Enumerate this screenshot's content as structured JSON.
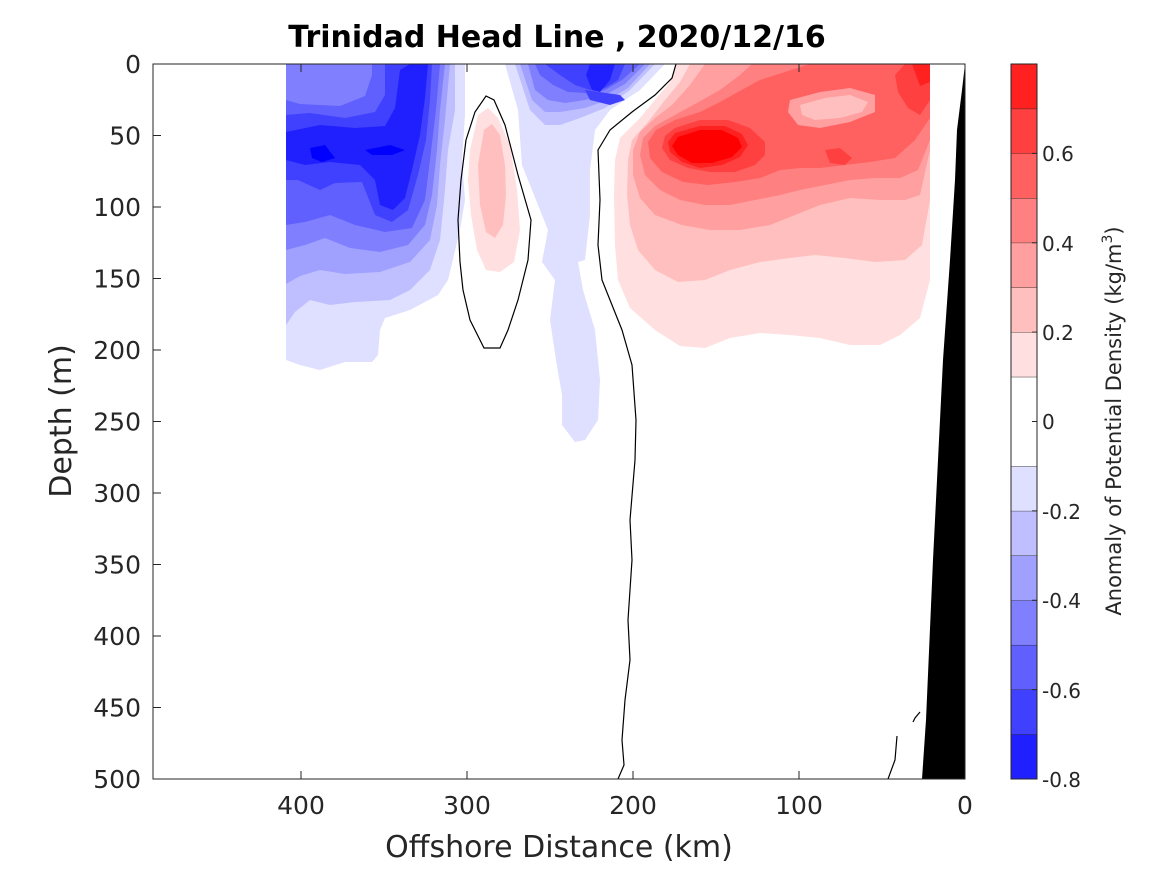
{
  "chart_data": {
    "type": "heatmap",
    "title": "Trinidad Head Line , 2020/12/16",
    "xlabel": "Offshore Distance (km)",
    "ylabel": "Depth (m)",
    "xlim": [
      490,
      0
    ],
    "ylim": [
      0,
      500
    ],
    "x_ticks": [
      "400",
      "300",
      "200",
      "100",
      "0"
    ],
    "y_ticks": [
      "0",
      "50",
      "100",
      "150",
      "200",
      "250",
      "300",
      "350",
      "400",
      "450",
      "500"
    ],
    "colorbar": {
      "label": "Anomaly of Potential Density (kg/m",
      "label_superscript": "3",
      "label_suffix": ")",
      "ticks": [
        "0.6",
        "0.4",
        "0.2",
        "0",
        "-0.2",
        "-0.4",
        "-0.6",
        "-0.8"
      ],
      "range": [
        -0.8,
        0.8
      ],
      "levels": [
        -0.8,
        -0.7,
        -0.6,
        -0.5,
        -0.4,
        -0.3,
        -0.2,
        -0.1,
        0.1,
        0.2,
        0.3,
        0.4,
        0.5,
        0.6,
        0.7,
        0.8
      ],
      "colors": [
        "#0000ff",
        "#2020ff",
        "#4040ff",
        "#6060ff",
        "#8080ff",
        "#a0a0ff",
        "#bfbfff",
        "#dfdfff",
        "#ffffff",
        "#ffdfdf",
        "#ffbfbf",
        "#ff9f9f",
        "#ff8080",
        "#ff6060",
        "#ff4040",
        "#ff2020",
        "#ff0000"
      ]
    },
    "features": {
      "negative_anomaly_region_km": [
        210,
        410
      ],
      "positive_anomaly_region_km": [
        20,
        210
      ],
      "zero_contour_line": true,
      "bathymetry_fill_color": "#000000"
    }
  }
}
